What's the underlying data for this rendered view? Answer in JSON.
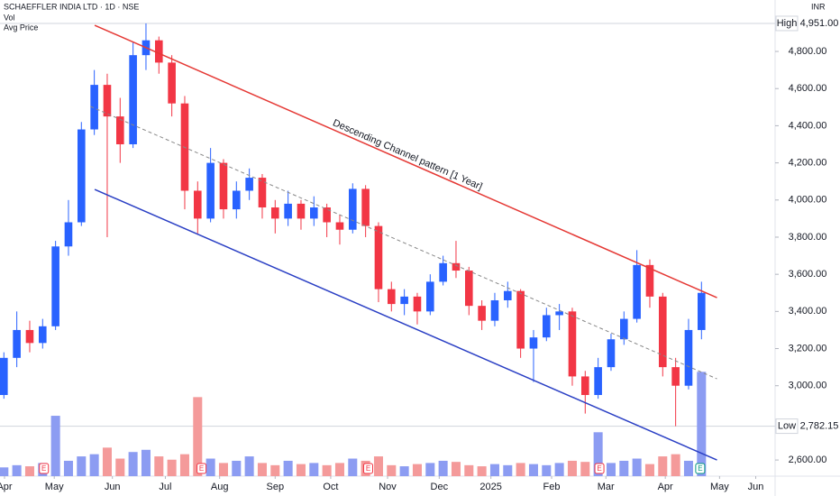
{
  "chart_data": {
    "type": "candlestick",
    "title": "SCHAEFFLER INDIA LTD · 1D · NSE",
    "legend_items": [
      "Vol",
      "Avg Price"
    ],
    "currency": "INR",
    "x": [
      0,
      1,
      2,
      3,
      4,
      5,
      6,
      7,
      8,
      9,
      10,
      11,
      12,
      13,
      14,
      15,
      16,
      17,
      18,
      19,
      20,
      21,
      22,
      23,
      24,
      25,
      26,
      27,
      28,
      29,
      30,
      31,
      32,
      33,
      34,
      35,
      36,
      37,
      38,
      39,
      40,
      41,
      42,
      43,
      44,
      45,
      46,
      47,
      48,
      49,
      50,
      51,
      52,
      53,
      54
    ],
    "open": [
      2950,
      3150,
      3300,
      3230,
      3320,
      3750,
      3880,
      4380,
      4620,
      4450,
      4300,
      4780,
      4860,
      4740,
      4520,
      4050,
      3900,
      4200,
      3950,
      4050,
      4120,
      3960,
      3900,
      3980,
      3900,
      3960,
      3880,
      3840,
      4060,
      3860,
      3520,
      3440,
      3480,
      3400,
      3560,
      3660,
      3620,
      3430,
      3350,
      3460,
      3510,
      3200,
      3260,
      3380,
      3400,
      3050,
      2950,
      3100,
      3250,
      3360,
      3650,
      3480,
      3100,
      3000,
      3300
    ],
    "high": [
      3180,
      3400,
      3350,
      3360,
      3780,
      4000,
      4420,
      4700,
      4680,
      4550,
      4850,
      4951,
      4880,
      4780,
      4560,
      4100,
      4280,
      4220,
      4100,
      4170,
      4140,
      4000,
      4050,
      4000,
      4020,
      3980,
      3920,
      4090,
      4080,
      3880,
      3560,
      3520,
      3500,
      3600,
      3700,
      3780,
      3640,
      3460,
      3500,
      3560,
      3520,
      3300,
      3420,
      3440,
      3420,
      3080,
      3150,
      3280,
      3400,
      3730,
      3680,
      3500,
      3150,
      3360,
      3560
    ],
    "low": [
      2930,
      3100,
      3180,
      3200,
      3300,
      3700,
      3860,
      4350,
      3800,
      4200,
      4280,
      4700,
      4680,
      4450,
      3950,
      3820,
      3880,
      3900,
      3900,
      4000,
      3900,
      3820,
      3860,
      3840,
      3860,
      3800,
      3760,
      3820,
      3800,
      3450,
      3400,
      3380,
      3330,
      3380,
      3540,
      3580,
      3380,
      3300,
      3320,
      3420,
      3150,
      3020,
      3240,
      3300,
      3000,
      2850,
      2930,
      3080,
      3220,
      3340,
      3420,
      3050,
      2782.15,
      2980,
      3250
    ],
    "close": [
      3150,
      3300,
      3230,
      3320,
      3750,
      3880,
      4380,
      4620,
      4450,
      4300,
      4780,
      4860,
      4740,
      4520,
      4050,
      3900,
      4200,
      3950,
      4050,
      4120,
      3960,
      3900,
      3980,
      3900,
      3960,
      3880,
      3840,
      4060,
      3860,
      3520,
      3440,
      3480,
      3400,
      3560,
      3660,
      3620,
      3430,
      3350,
      3460,
      3510,
      3200,
      3260,
      3380,
      3400,
      3050,
      2950,
      3100,
      3250,
      3360,
      3650,
      3480,
      3100,
      3000,
      3300,
      3500
    ],
    "volume": [
      8,
      10,
      9,
      12,
      55,
      14,
      18,
      20,
      26,
      16,
      22,
      24,
      18,
      15,
      20,
      72,
      16,
      12,
      14,
      18,
      12,
      10,
      14,
      11,
      12,
      10,
      12,
      16,
      14,
      18,
      10,
      9,
      11,
      12,
      14,
      13,
      10,
      9,
      11,
      10,
      12,
      11,
      10,
      12,
      14,
      13,
      40,
      12,
      14,
      16,
      11,
      18,
      20,
      14,
      95
    ],
    "up_color": "#2962ff",
    "down_color": "#f23645",
    "vol_up_color": "#8c9cf2",
    "vol_down_color": "#f49a9a",
    "xlim": [
      -0.3,
      59.7
    ],
    "xticks": [
      {
        "value": 0.05,
        "label": "Apr"
      },
      {
        "value": 3.9,
        "label": "May"
      },
      {
        "value": 8.4,
        "label": "Jun"
      },
      {
        "value": 12.5,
        "label": "Jul"
      },
      {
        "value": 16.7,
        "label": "Aug"
      },
      {
        "value": 21.0,
        "label": "Sep"
      },
      {
        "value": 25.3,
        "label": "Oct"
      },
      {
        "value": 29.7,
        "label": "Nov"
      },
      {
        "value": 33.7,
        "label": "Dec"
      },
      {
        "value": 37.7,
        "label": "2025"
      },
      {
        "value": 42.4,
        "label": "Feb"
      },
      {
        "value": 46.6,
        "label": "Mar"
      },
      {
        "value": 51.2,
        "label": "Apr"
      },
      {
        "value": 55.4,
        "label": "May"
      },
      {
        "value": 58.2,
        "label": "Jun"
      }
    ],
    "ylim": [
      2513,
      5077
    ],
    "yticks": [
      {
        "value": 4800,
        "label": "4,800.00"
      },
      {
        "value": 4600,
        "label": "4,600.00"
      },
      {
        "value": 4400,
        "label": "4,400.00"
      },
      {
        "value": 4200,
        "label": "4,200.00"
      },
      {
        "value": 4000,
        "label": "4,000.00"
      },
      {
        "value": 3800,
        "label": "3,800.00"
      },
      {
        "value": 3600,
        "label": "3,600.00"
      },
      {
        "value": 3400,
        "label": "3,400.00"
      },
      {
        "value": 3200,
        "label": "3,200.00"
      },
      {
        "value": 3000,
        "label": "3,000.00"
      },
      {
        "value": 2600,
        "label": "2,600.00"
      }
    ],
    "vol_ylim": [
      0,
      115
    ],
    "high_marker": {
      "label": "High",
      "value": 4951,
      "value_label": "4,951.00"
    },
    "low_marker": {
      "label": "Low",
      "value": 2782.15,
      "value_label": "2,782.15"
    },
    "trend_lines": [
      {
        "x": [
          7.03,
          55.2
        ],
        "y": [
          4941,
          3474
        ],
        "color": "#e53935",
        "dashed": false
      },
      {
        "x": [
          7.03,
          55.2
        ],
        "y": [
          4057,
          2600
        ],
        "color": "#2a3fc4",
        "dashed": false
      },
      {
        "x": [
          6.7,
          55.2
        ],
        "y": [
          4504,
          3037
        ],
        "color": "#888888",
        "dashed": true
      }
    ],
    "annotation": "Descending Channel pattern [1 Year]",
    "events": [
      {
        "label": "E",
        "x": 3.1,
        "color": "#f23645"
      },
      {
        "label": "E",
        "x": 15.3,
        "color": "#f23645"
      },
      {
        "label": "E",
        "x": 28.2,
        "color": "#f23645"
      },
      {
        "label": "E",
        "x": 46.1,
        "color": "#f23645"
      },
      {
        "label": "E",
        "x": 53.9,
        "color": "#089981"
      }
    ]
  }
}
